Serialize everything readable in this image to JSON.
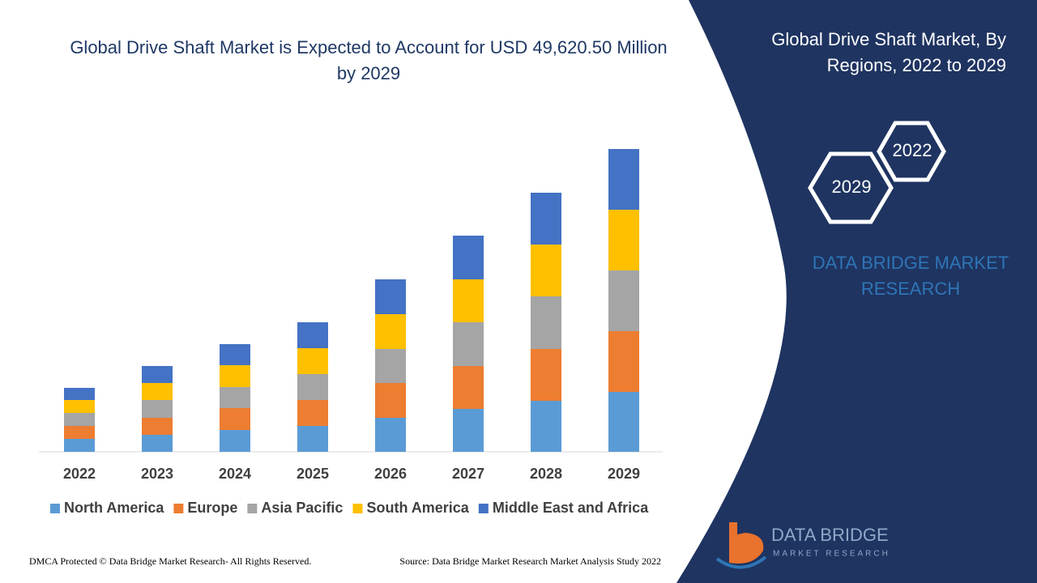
{
  "chart_data": {
    "type": "bar",
    "stacked": true,
    "title": "Global Drive Shaft Market is Expected to Account for USD 49,620.50 Million by 2029",
    "categories": [
      "2022",
      "2023",
      "2024",
      "2025",
      "2026",
      "2027",
      "2028",
      "2029"
    ],
    "series": [
      {
        "name": "North America",
        "color": "#5b9bd5",
        "values": [
          16,
          21,
          27,
          32,
          42,
          53,
          63,
          74
        ]
      },
      {
        "name": "Europe",
        "color": "#ed7d31",
        "values": [
          16,
          21,
          27,
          32,
          43,
          53,
          64,
          75
        ]
      },
      {
        "name": "Asia Pacific",
        "color": "#a5a5a5",
        "values": [
          16,
          22,
          26,
          32,
          42,
          54,
          65,
          75
        ]
      },
      {
        "name": "South America",
        "color": "#ffc000",
        "values": [
          16,
          21,
          27,
          32,
          43,
          53,
          64,
          75
        ]
      },
      {
        "name": "Middle East and Africa",
        "color": "#4472c4",
        "values": [
          15,
          21,
          26,
          32,
          43,
          54,
          64,
          75
        ]
      }
    ],
    "ylim": [
      0,
      400
    ]
  },
  "panel": {
    "title": "Global Drive Shaft Market, By Regions, 2022 to 2029",
    "hexagons": [
      "2022",
      "2029"
    ],
    "brand": "DATA BRIDGE MARKET RESEARCH"
  },
  "logo": {
    "name": "DATA BRIDGE",
    "tagline": "MARKET RESEARCH"
  },
  "footer": {
    "copyright": "DMCA Protected © Data Bridge Market Research- All Rights Reserved.",
    "source": "Source: Data Bridge Market Research Market Analysis Study 2022"
  }
}
